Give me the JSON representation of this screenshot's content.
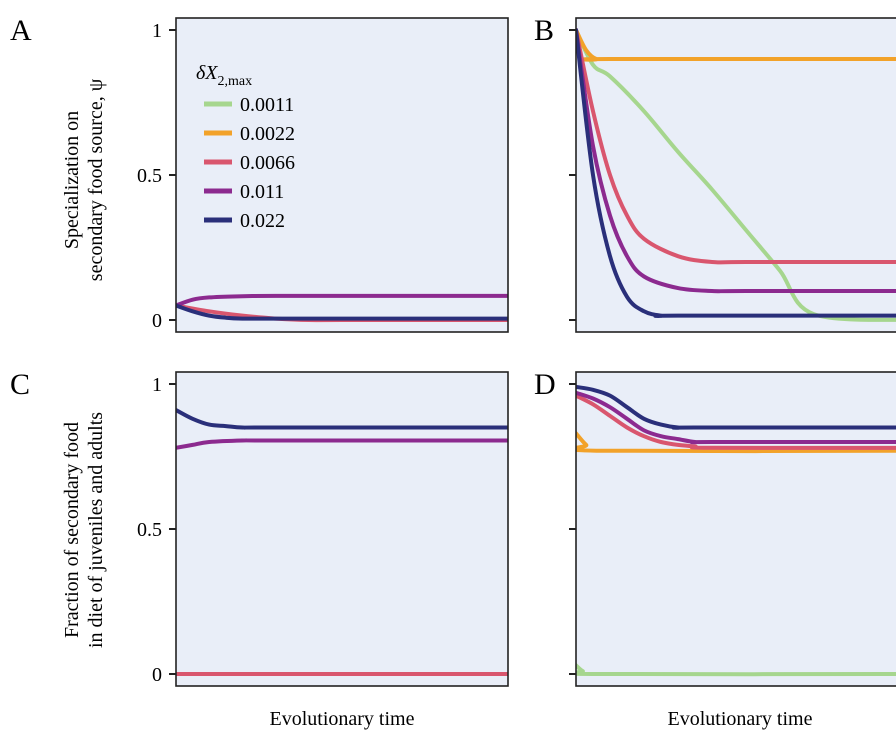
{
  "figure": {
    "panel_labels": [
      "A",
      "B",
      "C",
      "D"
    ],
    "ylabel_top_line1": "Specialization on",
    "ylabel_top_line2": "secondary food source, ψ",
    "ylabel_bottom_line1": "Fraction of secondary food",
    "ylabel_bottom_line2": "in diet of juveniles and adults",
    "xlabel_left": "Evolutionary time",
    "xlabel_right": "Evolutionary time",
    "legend_title_main": "δX",
    "legend_title_sub": "2,max",
    "panel_bg": "#e9eef8"
  },
  "chart_data": [
    {
      "panel": "A",
      "type": "line",
      "xlabel": "",
      "ylabel": "Specialization on secondary food source, ψ",
      "ylim": [
        0,
        1
      ],
      "yticks": [
        {
          "v": 0,
          "label": "0"
        },
        {
          "v": 0.5,
          "label": "0.5"
        },
        {
          "v": 1,
          "label": "1"
        }
      ],
      "xlim": [
        0,
        1
      ],
      "legend": "top-left",
      "series": [
        {
          "name": "0.0066",
          "color": "#d9566e",
          "x": [
            0,
            0.1,
            0.2,
            0.3,
            0.4,
            0.5,
            1
          ],
          "y": [
            0.05,
            0.03,
            0.015,
            0.005,
            0,
            0,
            0
          ]
        },
        {
          "name": "0.011",
          "color": "#8c2a8f",
          "x": [
            0,
            0.05,
            0.1,
            0.2,
            0.3,
            0.5,
            1
          ],
          "y": [
            0.05,
            0.07,
            0.078,
            0.082,
            0.083,
            0.083,
            0.083
          ]
        },
        {
          "name": "0.022",
          "color": "#2a2f7a",
          "x": [
            0,
            0.05,
            0.1,
            0.15,
            0.2,
            0.3,
            1
          ],
          "y": [
            0.05,
            0.03,
            0.015,
            0.008,
            0.005,
            0.005,
            0.005
          ]
        }
      ]
    },
    {
      "panel": "B",
      "type": "line",
      "xlabel": "Evolutionary time",
      "ylabel": "",
      "ylim": [
        0,
        1
      ],
      "yticks": [
        {
          "v": 0,
          "label": ""
        },
        {
          "v": 0.5,
          "label": ""
        },
        {
          "v": 1,
          "label": ""
        }
      ],
      "xlim": [
        0,
        1
      ],
      "series": [
        {
          "name": "0.0011",
          "color": "#a6d68e",
          "x": [
            0,
            0.05,
            0.1,
            0.2,
            0.3,
            0.4,
            0.5,
            0.6,
            0.7,
            1
          ],
          "y": [
            1,
            0.88,
            0.84,
            0.72,
            0.58,
            0.45,
            0.31,
            0.17,
            0.02,
            0
          ]
        },
        {
          "name": "0.0022",
          "color": "#f2a22a",
          "x": [
            0,
            0.03,
            0.06,
            0.1,
            1
          ],
          "y": [
            1,
            0.93,
            0.9,
            0.9,
            0.9
          ]
        },
        {
          "name": "0.0066",
          "color": "#d9566e",
          "x": [
            0,
            0.05,
            0.1,
            0.15,
            0.2,
            0.3,
            0.4,
            0.5,
            1
          ],
          "y": [
            1,
            0.72,
            0.5,
            0.36,
            0.28,
            0.22,
            0.2,
            0.2,
            0.2
          ]
        },
        {
          "name": "0.011",
          "color": "#8c2a8f",
          "x": [
            0,
            0.05,
            0.1,
            0.15,
            0.2,
            0.3,
            0.4,
            0.5,
            1
          ],
          "y": [
            1,
            0.6,
            0.36,
            0.22,
            0.15,
            0.11,
            0.1,
            0.1,
            0.1
          ]
        },
        {
          "name": "0.022",
          "color": "#2a2f7a",
          "x": [
            0,
            0.05,
            0.1,
            0.15,
            0.2,
            0.25,
            0.3,
            1
          ],
          "y": [
            1,
            0.5,
            0.22,
            0.08,
            0.03,
            0.015,
            0.015,
            0.015
          ]
        }
      ]
    },
    {
      "panel": "C",
      "type": "line",
      "xlabel": "Evolutionary time",
      "ylabel": "Fraction of secondary food in diet of juveniles and adults",
      "ylim": [
        0,
        1
      ],
      "yticks": [
        {
          "v": 0,
          "label": "0"
        },
        {
          "v": 0.5,
          "label": "0.5"
        },
        {
          "v": 1,
          "label": "1"
        }
      ],
      "xlim": [
        0,
        1
      ],
      "series": [
        {
          "name": "0.0066",
          "color": "#d9566e",
          "x": [
            0,
            1
          ],
          "y": [
            0,
            0
          ]
        },
        {
          "name": "0.011",
          "color": "#8c2a8f",
          "x": [
            0,
            0.05,
            0.1,
            0.2,
            0.3,
            1
          ],
          "y": [
            0.78,
            0.79,
            0.8,
            0.805,
            0.805,
            0.805
          ]
        },
        {
          "name": "0.022",
          "color": "#2a2f7a",
          "x": [
            0,
            0.05,
            0.1,
            0.15,
            0.2,
            0.3,
            1
          ],
          "y": [
            0.91,
            0.88,
            0.86,
            0.855,
            0.85,
            0.85,
            0.85
          ]
        }
      ]
    },
    {
      "panel": "D",
      "type": "line",
      "xlabel": "Evolutionary time",
      "ylabel": "",
      "ylim": [
        0,
        1
      ],
      "yticks": [
        {
          "v": 0,
          "label": ""
        },
        {
          "v": 0.5,
          "label": ""
        },
        {
          "v": 1,
          "label": ""
        }
      ],
      "xlim": [
        0,
        1
      ],
      "series": [
        {
          "name": "0.0011",
          "color": "#a6d68e",
          "x": [
            0,
            0.02,
            0.05,
            1
          ],
          "y": [
            0.03,
            0.01,
            0,
            0
          ]
        },
        {
          "name": "0.0022",
          "color": "#f2a22a",
          "x": [
            0,
            0.03,
            0.06,
            1
          ],
          "y": [
            0.83,
            0.79,
            0.77,
            0.77
          ]
        },
        {
          "name": "0.0066",
          "color": "#d9566e",
          "x": [
            0,
            0.05,
            0.1,
            0.15,
            0.2,
            0.25,
            0.3,
            0.35,
            0.4,
            1
          ],
          "y": [
            0.96,
            0.93,
            0.89,
            0.85,
            0.82,
            0.8,
            0.79,
            0.785,
            0.78,
            0.78
          ]
        },
        {
          "name": "0.011",
          "color": "#8c2a8f",
          "x": [
            0,
            0.05,
            0.1,
            0.15,
            0.2,
            0.25,
            0.3,
            0.35,
            0.4,
            1
          ],
          "y": [
            0.97,
            0.95,
            0.92,
            0.88,
            0.84,
            0.82,
            0.81,
            0.8,
            0.8,
            0.8
          ]
        },
        {
          "name": "0.022",
          "color": "#2a2f7a",
          "x": [
            0,
            0.05,
            0.1,
            0.15,
            0.2,
            0.25,
            0.3,
            0.35,
            1
          ],
          "y": [
            0.99,
            0.98,
            0.96,
            0.92,
            0.88,
            0.86,
            0.85,
            0.85,
            0.85
          ]
        }
      ]
    }
  ],
  "legend": {
    "entries": [
      {
        "label": "0.0011",
        "color": "#a6d68e"
      },
      {
        "label": "0.0022",
        "color": "#f2a22a"
      },
      {
        "label": "0.0066",
        "color": "#d9566e"
      },
      {
        "label": "0.011",
        "color": "#8c2a8f"
      },
      {
        "label": "0.022",
        "color": "#2a2f7a"
      }
    ]
  }
}
